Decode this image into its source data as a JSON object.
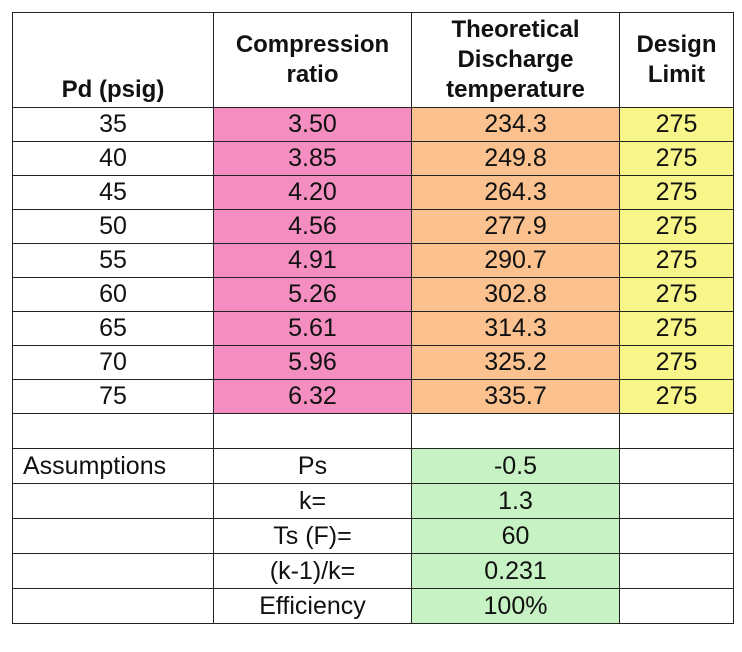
{
  "chart_data": {
    "type": "table",
    "columns": [
      "Pd (psig)",
      "Compression ratio",
      "Theoretical Discharge temperature",
      "Design Limit"
    ],
    "header": {
      "pd": "Pd (psig)",
      "ratio": [
        "Compression",
        "ratio"
      ],
      "discharge": [
        "Theoretical",
        "Discharge",
        "temperature"
      ],
      "limit": [
        "Design",
        "Limit"
      ]
    },
    "rows": [
      [
        "35",
        "3.50",
        "234.3",
        "275"
      ],
      [
        "40",
        "3.85",
        "249.8",
        "275"
      ],
      [
        "45",
        "4.20",
        "264.3",
        "275"
      ],
      [
        "50",
        "4.56",
        "277.9",
        "275"
      ],
      [
        "55",
        "4.91",
        "290.7",
        "275"
      ],
      [
        "60",
        "5.26",
        "302.8",
        "275"
      ],
      [
        "65",
        "5.61",
        "314.3",
        "275"
      ],
      [
        "70",
        "5.96",
        "325.2",
        "275"
      ],
      [
        "75",
        "6.32",
        "335.7",
        "275"
      ]
    ],
    "assumptions": {
      "label": "Assumptions",
      "items": [
        {
          "name": "Ps",
          "value": "-0.5"
        },
        {
          "name": "k=",
          "value": "1.3"
        },
        {
          "name": "Ts (F)=",
          "value": "60"
        },
        {
          "name": "(k-1)/k=",
          "value": "0.231"
        },
        {
          "name": "Efficiency",
          "value": "100%"
        }
      ]
    },
    "colors": {
      "ratio": "#f58ec0",
      "discharge": "#fbc290",
      "limit": "#f8f58a",
      "assumption_value": "#c7f2c4"
    }
  }
}
